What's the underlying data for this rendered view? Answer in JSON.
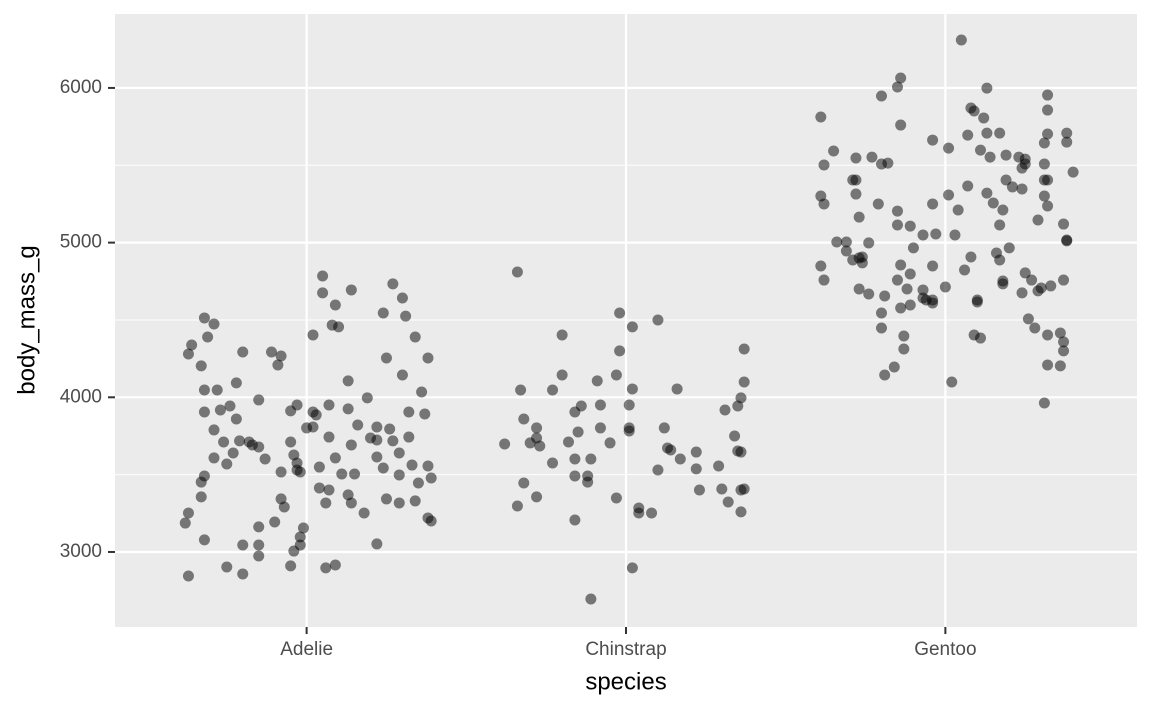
{
  "chart_data": {
    "type": "scatter",
    "x_label": "species",
    "y_label": "body_mass_g",
    "color": "#000000",
    "alpha": 0.5,
    "grid": true,
    "xlim": [
      0.4,
      3.6
    ],
    "ylim": [
      2515,
      6478
    ],
    "xticks": [
      {
        "value": 1,
        "label": "Adelie"
      },
      {
        "value": 2,
        "label": "Chinstrap"
      },
      {
        "value": 3,
        "label": "Gentoo"
      }
    ],
    "yticks": [
      3000,
      4000,
      5000,
      6000
    ],
    "yminor_ticks": [
      3500,
      4500,
      5500
    ],
    "x": [
      0.63,
      0.62,
      0.63,
      0.68,
      0.67,
      0.67,
      0.68,
      0.71,
      0.75,
      0.75,
      0.8,
      0.8,
      0.85,
      0.85,
      0.85,
      0.9,
      0.92,
      0.93,
      0.92,
      0.95,
      0.96,
      0.98,
      0.98,
      0.99,
      0.97,
      0.96,
      0.95,
      0.95,
      0.97,
      1.0,
      1.02,
      1.02,
      1.03,
      1.06,
      1.09,
      1.06,
      1.07,
      1.07,
      1.09,
      1.11,
      1.15,
      1.13,
      1.13,
      1.08,
      1.1,
      1.05,
      1.05,
      1.09,
      1.14,
      1.02,
      1.19,
      1.18,
      1.14,
      1.22,
      1.22,
      1.24,
      1.26,
      1.29,
      1.25,
      1.22,
      1.24,
      1.27,
      1.3,
      1.34,
      1.25,
      1.3,
      1.36,
      1.38,
      1.37,
      1.32,
      1.32,
      1.33,
      1.29,
      1.29,
      1.34,
      1.35,
      1.38,
      1.38,
      1.39,
      1.39,
      1.31,
      0.63,
      0.64,
      0.68,
      0.71,
      0.69,
      0.68,
      0.68,
      0.71,
      0.72,
      0.73,
      0.76,
      0.8,
      0.89,
      0.92,
      0.91,
      0.85,
      0.78,
      0.83,
      0.87,
      0.97,
      0.98,
      1.14,
      1.04,
      1.04,
      1.16,
      1.22,
      1.27,
      1.2,
      0.85,
      0.82,
      0.79,
      0.78,
      0.74,
      0.67,
      0.77,
      1.13,
      1.07,
      1.66,
      1.62,
      1.66,
      1.68,
      1.72,
      1.68,
      1.67,
      1.72,
      1.72,
      1.73,
      1.7,
      1.77,
      1.77,
      1.8,
      1.8,
      1.82,
      1.84,
      1.84,
      1.84,
      1.85,
      1.84,
      1.86,
      1.88,
      1.88,
      1.89,
      1.89,
      1.92,
      1.92,
      1.91,
      1.95,
      1.97,
      1.98,
      1.98,
      1.97,
      2.01,
      2.01,
      2.01,
      2.02,
      2.02,
      2.02,
      2.04,
      2.04,
      2.08,
      2.1,
      2.1,
      2.13,
      2.12,
      2.14,
      2.16,
      2.17,
      2.22,
      2.22,
      2.23,
      2.29,
      2.3,
      2.32,
      2.31,
      2.35,
      2.36,
      2.34,
      2.35,
      2.36,
      2.36,
      2.37,
      2.36,
      2.37,
      2.37,
      2.61,
      2.62,
      2.61,
      2.62,
      2.65,
      2.61,
      2.62,
      2.66,
      2.69,
      2.69,
      2.72,
      2.71,
      2.72,
      2.72,
      2.71,
      2.73,
      2.73,
      2.73,
      2.74,
      2.74,
      2.76,
      2.76,
      2.77,
      2.79,
      2.8,
      2.8,
      2.82,
      2.8,
      2.8,
      2.81,
      2.81,
      2.84,
      2.85,
      2.85,
      2.85,
      2.86,
      2.86,
      2.87,
      2.87,
      2.88,
      2.89,
      2.85,
      2.86,
      2.86,
      2.89,
      2.89,
      2.9,
      2.94,
      2.93,
      2.93,
      2.93,
      2.96,
      2.96,
      2.96,
      2.96,
      2.96,
      2.97,
      3.0,
      3.01,
      3.01,
      3.03,
      3.02,
      3.04,
      3.05,
      3.06,
      3.07,
      3.07,
      3.08,
      3.08,
      3.09,
      3.09,
      3.1,
      3.1,
      3.11,
      3.11,
      3.12,
      3.13,
      3.13,
      3.13,
      3.14,
      3.15,
      3.16,
      3.17,
      3.17,
      3.17,
      3.18,
      3.19,
      3.18,
      3.19,
      3.18,
      3.2,
      3.21,
      3.23,
      3.24,
      3.25,
      3.25,
      3.24,
      3.25,
      3.24,
      3.26,
      3.28,
      3.27,
      3.29,
      3.29,
      3.3,
      3.31,
      3.32,
      3.32,
      3.32,
      3.31,
      3.31,
      3.31,
      3.32,
      3.32,
      3.32,
      3.32,
      3.31,
      3.33,
      3.36,
      3.36,
      3.37,
      3.37,
      3.37,
      3.37,
      3.38,
      3.38,
      3.38,
      3.38,
      3.4
    ],
    "y": [
      2845,
      3187,
      3252,
      3078,
      3356,
      3452,
      3491,
      3608,
      3569,
      2903,
      2858,
      3045,
      3045,
      2974,
      3162,
      3194,
      3343,
      3291,
      3517,
      2910,
      3006,
      3097,
      3045,
      3155,
      3575,
      3627,
      3711,
      3912,
      3950,
      3802,
      3808,
      3905,
      3886,
      2897,
      2916,
      3317,
      3743,
      3950,
      3608,
      3504,
      3504,
      3925,
      4106,
      4467,
      4455,
      4675,
      4784,
      4597,
      4694,
      4403,
      3996,
      3252,
      3317,
      3614,
      3724,
      3543,
      3795,
      3498,
      3343,
      3052,
      4545,
      4733,
      4642,
      4390,
      4254,
      4144,
      4034,
      4254,
      3892,
      3905,
      3743,
      3562,
      3640,
      3317,
      3330,
      3446,
      3556,
      3220,
      3200,
      3478,
      4525,
      4280,
      4338,
      4513,
      4474,
      4390,
      4047,
      3905,
      3789,
      4047,
      3918,
      3944,
      4293,
      4293,
      4267,
      4209,
      3983,
      4093,
      3692,
      3601,
      3530,
      3517,
      3692,
      3549,
      3414,
      3821,
      3808,
      3718,
      3737,
      3679,
      3711,
      3718,
      3860,
      3711,
      4203,
      3640,
      3369,
      3401,
      4810,
      3698,
      3297,
      3446,
      3356,
      3860,
      4047,
      3802,
      3737,
      3685,
      3705,
      4047,
      3575,
      4144,
      4403,
      3711,
      3491,
      3207,
      3601,
      3776,
      3905,
      3944,
      3491,
      3452,
      3601,
      2696,
      3802,
      3950,
      4106,
      3705,
      3349,
      4545,
      4300,
      4144,
      3950,
      3802,
      3782,
      4054,
      4455,
      2897,
      3284,
      3252,
      3252,
      3530,
      4500,
      3672,
      3802,
      3659,
      4054,
      3601,
      3646,
      3537,
      3401,
      3556,
      3407,
      3323,
      3918,
      3944,
      3996,
      3750,
      3653,
      3646,
      3401,
      3407,
      3259,
      4099,
      4312,
      5812,
      5502,
      5301,
      5250,
      5592,
      4849,
      4758,
      5004,
      5004,
      4946,
      5547,
      5405,
      5405,
      5314,
      4888,
      5165,
      4700,
      4901,
      4869,
      4907,
      4668,
      4998,
      5553,
      5250,
      5948,
      5508,
      5514,
      4545,
      4448,
      4655,
      4144,
      4196,
      5204,
      5114,
      4758,
      4855,
      4577,
      4396,
      4312,
      4700,
      4797,
      6006,
      6064,
      5760,
      5107,
      4597,
      4966,
      4629,
      4694,
      5049,
      4642,
      4629,
      4610,
      5663,
      5250,
      4849,
      5056,
      4713,
      5611,
      5308,
      5049,
      4099,
      5211,
      6310,
      4823,
      5366,
      5695,
      5870,
      4907,
      5851,
      4403,
      4629,
      4616,
      4383,
      5598,
      5806,
      5320,
      5708,
      5999,
      5553,
      5256,
      4933,
      5114,
      4888,
      5708,
      5211,
      5566,
      4752,
      5405,
      4733,
      4966,
      5360,
      5553,
      5482,
      5540,
      5508,
      5347,
      4804,
      4675,
      4507,
      4448,
      4758,
      5146,
      4688,
      4707,
      5301,
      5954,
      5857,
      5702,
      5644,
      5508,
      5405,
      5405,
      5237,
      4403,
      4209,
      3963,
      4720,
      4203,
      4416,
      4358,
      4300,
      4758,
      5120,
      5017,
      5011,
      5708,
      5650,
      5456
    ]
  }
}
